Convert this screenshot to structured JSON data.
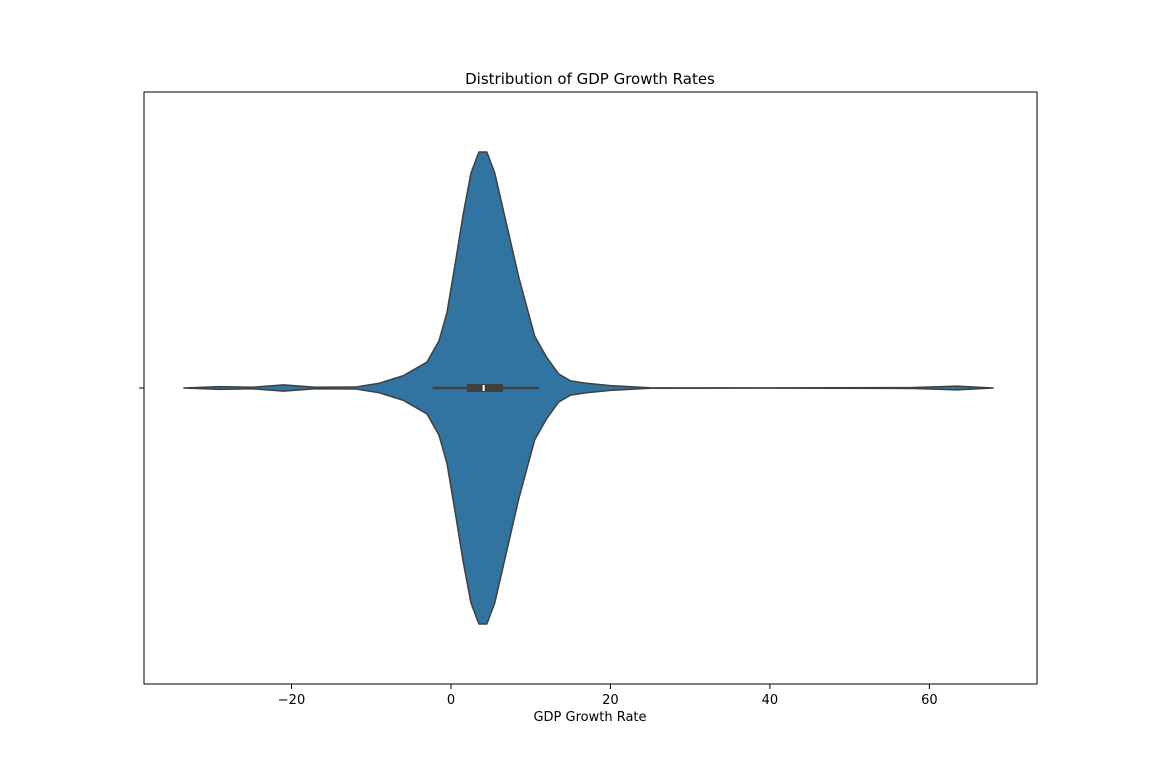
{
  "chart_data": {
    "type": "violin",
    "title": "Distribution of GDP Growth Rates",
    "xlabel": "GDP Growth Rate",
    "ylabel": "",
    "xlim": [
      -38.5,
      73.5
    ],
    "xticks": [
      -20,
      0,
      20,
      40,
      60
    ],
    "xtick_labels": [
      "−20",
      "0",
      "20",
      "40",
      "60"
    ],
    "grid": false,
    "fill_color": "#3274a1",
    "edge_color": "#3f3f3f",
    "box_color": "#3f3f3f",
    "median_color": "#ffffff",
    "violin": {
      "range": [
        -33.5,
        68
      ],
      "density_profile": [
        {
          "x": -33.5,
          "w": 0.0
        },
        {
          "x": -29,
          "w": 0.006
        },
        {
          "x": -25,
          "w": 0.003
        },
        {
          "x": -21,
          "w": 0.013
        },
        {
          "x": -17,
          "w": 0.003
        },
        {
          "x": -12,
          "w": 0.004
        },
        {
          "x": -9,
          "w": 0.02
        },
        {
          "x": -6,
          "w": 0.052
        },
        {
          "x": -3,
          "w": 0.11
        },
        {
          "x": -1.5,
          "w": 0.2
        },
        {
          "x": -0.5,
          "w": 0.32
        },
        {
          "x": 0.5,
          "w": 0.52
        },
        {
          "x": 1.5,
          "w": 0.73
        },
        {
          "x": 2.5,
          "w": 0.91
        },
        {
          "x": 3.5,
          "w": 1.0
        },
        {
          "x": 4.5,
          "w": 1.0
        },
        {
          "x": 5.5,
          "w": 0.91
        },
        {
          "x": 7.0,
          "w": 0.69
        },
        {
          "x": 8.5,
          "w": 0.47
        },
        {
          "x": 10.5,
          "w": 0.22
        },
        {
          "x": 12.0,
          "w": 0.13
        },
        {
          "x": 13.5,
          "w": 0.06
        },
        {
          "x": 15.0,
          "w": 0.03
        },
        {
          "x": 17.0,
          "w": 0.02
        },
        {
          "x": 20.0,
          "w": 0.01
        },
        {
          "x": 25.0,
          "w": 0.001
        },
        {
          "x": 40.0,
          "w": 0.0005
        },
        {
          "x": 58.0,
          "w": 0.002
        },
        {
          "x": 63.5,
          "w": 0.008
        },
        {
          "x": 68.0,
          "w": 0.0
        }
      ],
      "whisker_low": -2.3,
      "q1": 2.0,
      "median": 4.1,
      "q3": 6.5,
      "whisker_high": 11.0
    }
  }
}
